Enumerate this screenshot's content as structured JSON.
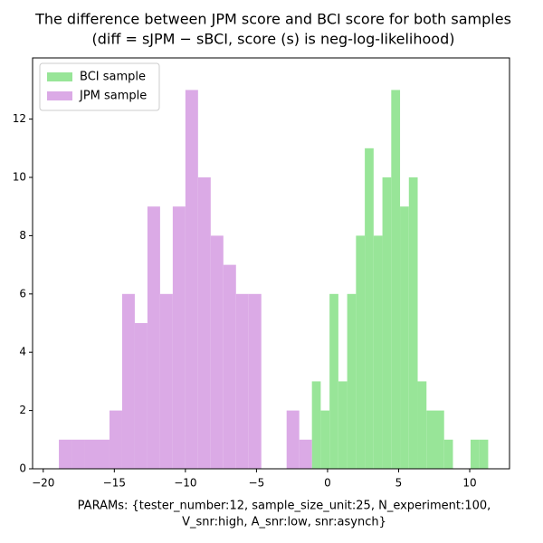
{
  "chart_data": {
    "type": "histogram",
    "title": "The difference between JPM score and BCI score for both samples",
    "subtitle": "(diff = sJPM − sBCI, score (s) is neg-log-likelihood)",
    "xlabel": [
      "PARAMs: {tester_number:12, sample_size_unit:25, N_experiment:100,",
      "V_snr:high, A_snr:low, snr:asynch}"
    ],
    "series": [
      {
        "name": "BCI sample",
        "color": "#98e598",
        "bins": [
          -1.1,
          -0.48,
          0.14,
          0.76,
          1.38,
          2.0,
          2.62,
          3.24,
          3.86,
          4.48,
          5.1,
          5.72,
          6.34,
          6.96,
          7.58,
          8.2,
          8.82,
          9.44,
          10.06,
          10.68,
          11.3
        ],
        "values": [
          3,
          2,
          6,
          3,
          6,
          8,
          11,
          8,
          10,
          13,
          9,
          10,
          3,
          2,
          2,
          1,
          0,
          0,
          1,
          1
        ]
      },
      {
        "name": "JPM sample",
        "color": "#dbaae6",
        "bins": [
          -18.9,
          -18.01,
          -17.12,
          -16.23,
          -15.34,
          -14.45,
          -13.56,
          -12.67,
          -11.78,
          -10.89,
          -10.0,
          -9.11,
          -8.22,
          -7.33,
          -6.44,
          -5.55,
          -4.66,
          -3.77,
          -2.88,
          -1.99,
          -1.1
        ],
        "values": [
          1,
          1,
          1,
          1,
          2,
          6,
          5,
          9,
          6,
          9,
          13,
          10,
          8,
          7,
          6,
          6,
          0,
          0,
          2,
          1
        ]
      }
    ],
    "xlim": [
      -20.75,
      12.8
    ],
    "ylim": [
      0,
      14.1
    ],
    "xticks": [
      {
        "value": -20,
        "label": "−20"
      },
      {
        "value": -15,
        "label": "−15"
      },
      {
        "value": -10,
        "label": "−10"
      },
      {
        "value": -5,
        "label": "−5"
      },
      0,
      5,
      10
    ],
    "yticks": [
      0,
      2,
      4,
      6,
      8,
      10,
      12
    ],
    "legend": "upper left"
  }
}
